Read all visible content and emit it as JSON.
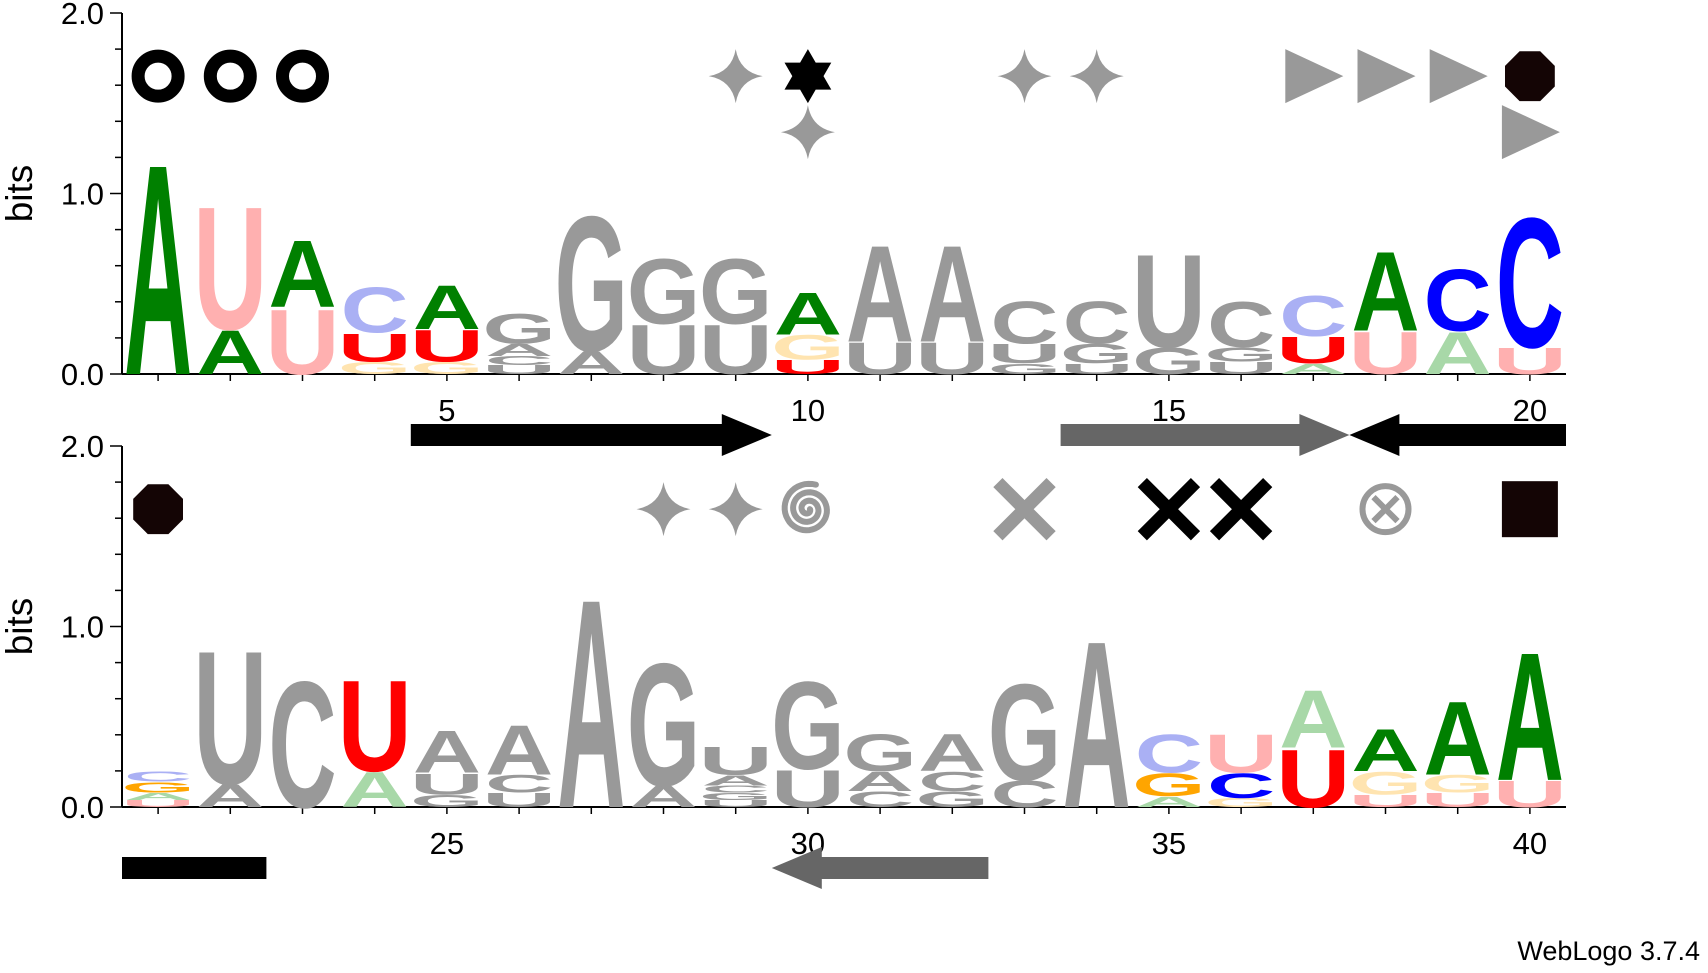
{
  "credit": "WebLogo 3.7.4",
  "colors": {
    "A_strong": "#008000",
    "A_light": "#a8d8a8",
    "U_strong": "#ff0000",
    "U_light": "#ffb0b0",
    "C_strong": "#0000ff",
    "C_light": "#aab0f4",
    "G_strong": "#ffa500",
    "G_light": "#ffe4b0",
    "gray": "#999999",
    "black": "#000000",
    "dark": "#140505"
  },
  "chart_data": {
    "type": "sequence-logo",
    "ylabel": "bits",
    "ylim": [
      0,
      2.0
    ],
    "yticks": [
      "0.0",
      "1.0",
      "2.0"
    ],
    "rows": [
      {
        "positions": [
          {
            "pos": 1,
            "stack": [
              {
                "l": "A",
                "h": 1.2,
                "c": "A_strong"
              }
            ]
          },
          {
            "pos": 2,
            "stack": [
              {
                "l": "U",
                "h": 0.7,
                "c": "U_light"
              },
              {
                "l": "A",
                "h": 0.25,
                "c": "A_strong"
              }
            ]
          },
          {
            "pos": 3,
            "stack": [
              {
                "l": "A",
                "h": 0.38,
                "c": "A_strong"
              },
              {
                "l": "U",
                "h": 0.37,
                "c": "U_light"
              }
            ]
          },
          {
            "pos": 4,
            "stack": [
              {
                "l": "C",
                "h": 0.26,
                "c": "C_light"
              },
              {
                "l": "U",
                "h": 0.16,
                "c": "U_strong"
              },
              {
                "l": "G",
                "h": 0.07,
                "c": "G_light"
              }
            ]
          },
          {
            "pos": 5,
            "stack": [
              {
                "l": "A",
                "h": 0.25,
                "c": "A_strong"
              },
              {
                "l": "U",
                "h": 0.18,
                "c": "U_strong"
              },
              {
                "l": "G",
                "h": 0.07,
                "c": "G_light"
              }
            ]
          },
          {
            "pos": 6,
            "stack": [
              {
                "l": "G",
                "h": 0.17,
                "c": "gray"
              },
              {
                "l": "A",
                "h": 0.07,
                "c": "gray"
              },
              {
                "l": "C",
                "h": 0.05,
                "c": "gray"
              },
              {
                "l": "U",
                "h": 0.05,
                "c": "gray"
              }
            ]
          },
          {
            "pos": 7,
            "stack": [
              {
                "l": "G",
                "h": 0.77,
                "c": "gray"
              },
              {
                "l": "A",
                "h": 0.13,
                "c": "gray"
              }
            ]
          },
          {
            "pos": 8,
            "stack": [
              {
                "l": "G",
                "h": 0.37,
                "c": "gray"
              },
              {
                "l": "U",
                "h": 0.28,
                "c": "gray"
              }
            ]
          },
          {
            "pos": 9,
            "stack": [
              {
                "l": "G",
                "h": 0.37,
                "c": "gray"
              },
              {
                "l": "U",
                "h": 0.28,
                "c": "gray"
              }
            ]
          },
          {
            "pos": 10,
            "stack": [
              {
                "l": "A",
                "h": 0.24,
                "c": "A_strong"
              },
              {
                "l": "G",
                "h": 0.14,
                "c": "G_light"
              },
              {
                "l": "U",
                "h": 0.08,
                "c": "U_strong"
              }
            ]
          },
          {
            "pos": 11,
            "stack": [
              {
                "l": "A",
                "h": 0.55,
                "c": "gray"
              },
              {
                "l": "U",
                "h": 0.18,
                "c": "gray"
              }
            ]
          },
          {
            "pos": 12,
            "stack": [
              {
                "l": "A",
                "h": 0.55,
                "c": "gray"
              },
              {
                "l": "U",
                "h": 0.18,
                "c": "gray"
              }
            ]
          },
          {
            "pos": 13,
            "stack": [
              {
                "l": "C",
                "h": 0.24,
                "c": "gray"
              },
              {
                "l": "U",
                "h": 0.11,
                "c": "gray"
              },
              {
                "l": "G",
                "h": 0.06,
                "c": "gray"
              }
            ]
          },
          {
            "pos": 14,
            "stack": [
              {
                "l": "C",
                "h": 0.24,
                "c": "gray"
              },
              {
                "l": "G",
                "h": 0.11,
                "c": "gray"
              },
              {
                "l": "U",
                "h": 0.06,
                "c": "gray"
              }
            ]
          },
          {
            "pos": 15,
            "stack": [
              {
                "l": "U",
                "h": 0.53,
                "c": "gray"
              },
              {
                "l": "G",
                "h": 0.15,
                "c": "gray"
              }
            ]
          },
          {
            "pos": 16,
            "stack": [
              {
                "l": "C",
                "h": 0.26,
                "c": "gray"
              },
              {
                "l": "G",
                "h": 0.08,
                "c": "gray"
              },
              {
                "l": "U",
                "h": 0.07,
                "c": "gray"
              }
            ]
          },
          {
            "pos": 17,
            "stack": [
              {
                "l": "C",
                "h": 0.23,
                "c": "C_light"
              },
              {
                "l": "U",
                "h": 0.15,
                "c": "U_strong"
              },
              {
                "l": "A",
                "h": 0.06,
                "c": "A_light"
              }
            ]
          },
          {
            "pos": 18,
            "stack": [
              {
                "l": "A",
                "h": 0.45,
                "c": "A_strong"
              },
              {
                "l": "U",
                "h": 0.24,
                "c": "U_light"
              }
            ]
          },
          {
            "pos": 19,
            "stack": [
              {
                "l": "C",
                "h": 0.35,
                "c": "C_strong"
              },
              {
                "l": "A",
                "h": 0.24,
                "c": "A_light"
              }
            ]
          },
          {
            "pos": 20,
            "stack": [
              {
                "l": "C",
                "h": 0.74,
                "c": "C_strong"
              },
              {
                "l": "U",
                "h": 0.15,
                "c": "U_light"
              }
            ]
          }
        ],
        "xticks": [
          {
            "pos": 5,
            "label": "5"
          },
          {
            "pos": 10,
            "label": "10"
          },
          {
            "pos": 15,
            "label": "15"
          },
          {
            "pos": 20,
            "label": "20"
          }
        ],
        "symbols": [
          {
            "pos": 1,
            "type": "ring",
            "color": "black",
            "level": 1.65
          },
          {
            "pos": 2,
            "type": "ring",
            "color": "black",
            "level": 1.65
          },
          {
            "pos": 3,
            "type": "ring",
            "color": "black",
            "level": 1.65
          },
          {
            "pos": 9,
            "type": "sparkle",
            "color": "gray",
            "level": 1.65
          },
          {
            "pos": 10,
            "type": "hexagram",
            "color": "black",
            "level": 1.65
          },
          {
            "pos": 10,
            "type": "sparkle",
            "color": "gray",
            "level": 1.34
          },
          {
            "pos": 13,
            "type": "sparkle",
            "color": "gray",
            "level": 1.65
          },
          {
            "pos": 14,
            "type": "sparkle",
            "color": "gray",
            "level": 1.65
          },
          {
            "pos": 17,
            "type": "triangle",
            "color": "gray",
            "level": 1.65
          },
          {
            "pos": 18,
            "type": "triangle",
            "color": "gray",
            "level": 1.65
          },
          {
            "pos": 19,
            "type": "triangle",
            "color": "gray",
            "level": 1.65
          },
          {
            "pos": 20,
            "type": "octagon",
            "color": "dark",
            "level": 1.65
          },
          {
            "pos": 20,
            "type": "triangle",
            "color": "gray",
            "level": 1.34
          }
        ],
        "arrows": [
          {
            "from": 4.5,
            "to": 9.5,
            "dir": "right",
            "color": "black"
          },
          {
            "from": 13.5,
            "to": 17.5,
            "dir": "right",
            "color": "#666666"
          },
          {
            "from": 17.5,
            "to": 20.5,
            "dir": "left",
            "color": "black"
          }
        ]
      },
      {
        "positions": [
          {
            "pos": 21,
            "stack": [
              {
                "l": "C",
                "h": 0.06,
                "c": "C_light"
              },
              {
                "l": "G",
                "h": 0.06,
                "c": "G_strong"
              },
              {
                "l": "A",
                "h": 0.04,
                "c": "A_light"
              },
              {
                "l": "U",
                "h": 0.04,
                "c": "U_light"
              }
            ]
          },
          {
            "pos": 22,
            "stack": [
              {
                "l": "U",
                "h": 0.76,
                "c": "gray"
              },
              {
                "l": "A",
                "h": 0.13,
                "c": "gray"
              }
            ]
          },
          {
            "pos": 23,
            "stack": [
              {
                "l": "C",
                "h": 0.72,
                "c": "gray"
              }
            ]
          },
          {
            "pos": 24,
            "stack": [
              {
                "l": "U",
                "h": 0.52,
                "c": "U_strong"
              },
              {
                "l": "A",
                "h": 0.2,
                "c": "A_light"
              }
            ]
          },
          {
            "pos": 25,
            "stack": [
              {
                "l": "A",
                "h": 0.24,
                "c": "gray"
              },
              {
                "l": "U",
                "h": 0.12,
                "c": "gray"
              },
              {
                "l": "G",
                "h": 0.07,
                "c": "gray"
              }
            ]
          },
          {
            "pos": 26,
            "stack": [
              {
                "l": "A",
                "h": 0.28,
                "c": "gray"
              },
              {
                "l": "C",
                "h": 0.1,
                "c": "gray"
              },
              {
                "l": "U",
                "h": 0.08,
                "c": "gray"
              }
            ]
          },
          {
            "pos": 27,
            "stack": [
              {
                "l": "A",
                "h": 1.19,
                "c": "gray"
              }
            ]
          },
          {
            "pos": 28,
            "stack": [
              {
                "l": "G",
                "h": 0.7,
                "c": "gray"
              },
              {
                "l": "A",
                "h": 0.12,
                "c": "gray"
              }
            ]
          },
          {
            "pos": 29,
            "stack": [
              {
                "l": "U",
                "h": 0.16,
                "c": "gray"
              },
              {
                "l": "A",
                "h": 0.06,
                "c": "gray"
              },
              {
                "l": "C",
                "h": 0.04,
                "c": "gray"
              },
              {
                "l": "G",
                "h": 0.04,
                "c": "gray"
              },
              {
                "l": "U",
                "h": 0.04,
                "c": "gray"
              }
            ]
          },
          {
            "pos": 30,
            "stack": [
              {
                "l": "G",
                "h": 0.5,
                "c": "gray"
              },
              {
                "l": "U",
                "h": 0.21,
                "c": "gray"
              }
            ]
          },
          {
            "pos": 31,
            "stack": [
              {
                "l": "G",
                "h": 0.21,
                "c": "gray"
              },
              {
                "l": "A",
                "h": 0.11,
                "c": "gray"
              },
              {
                "l": "C",
                "h": 0.09,
                "c": "gray"
              }
            ]
          },
          {
            "pos": 32,
            "stack": [
              {
                "l": "A",
                "h": 0.21,
                "c": "gray"
              },
              {
                "l": "C",
                "h": 0.11,
                "c": "gray"
              },
              {
                "l": "G",
                "h": 0.09,
                "c": "gray"
              }
            ]
          },
          {
            "pos": 33,
            "stack": [
              {
                "l": "G",
                "h": 0.55,
                "c": "gray"
              },
              {
                "l": "C",
                "h": 0.15,
                "c": "gray"
              }
            ]
          },
          {
            "pos": 34,
            "stack": [
              {
                "l": "A",
                "h": 0.95,
                "c": "gray"
              }
            ]
          },
          {
            "pos": 35,
            "stack": [
              {
                "l": "C",
                "h": 0.22,
                "c": "C_light"
              },
              {
                "l": "G",
                "h": 0.13,
                "c": "G_strong"
              },
              {
                "l": "A",
                "h": 0.06,
                "c": "A_light"
              }
            ]
          },
          {
            "pos": 36,
            "stack": [
              {
                "l": "U",
                "h": 0.22,
                "c": "U_light"
              },
              {
                "l": "C",
                "h": 0.14,
                "c": "C_strong"
              },
              {
                "l": "G",
                "h": 0.05,
                "c": "G_light"
              }
            ]
          },
          {
            "pos": 37,
            "stack": [
              {
                "l": "A",
                "h": 0.33,
                "c": "A_light"
              },
              {
                "l": "U",
                "h": 0.33,
                "c": "U_strong"
              }
            ]
          },
          {
            "pos": 38,
            "stack": [
              {
                "l": "A",
                "h": 0.24,
                "c": "A_strong"
              },
              {
                "l": "G",
                "h": 0.13,
                "c": "G_light"
              },
              {
                "l": "U",
                "h": 0.07,
                "c": "U_light"
              }
            ]
          },
          {
            "pos": 39,
            "stack": [
              {
                "l": "A",
                "h": 0.42,
                "c": "A_strong"
              },
              {
                "l": "G",
                "h": 0.1,
                "c": "G_light"
              },
              {
                "l": "U",
                "h": 0.08,
                "c": "U_light"
              }
            ]
          },
          {
            "pos": 40,
            "stack": [
              {
                "l": "A",
                "h": 0.73,
                "c": "A_strong"
              },
              {
                "l": "U",
                "h": 0.15,
                "c": "U_light"
              }
            ]
          }
        ],
        "xticks": [
          {
            "pos": 25,
            "label": "25"
          },
          {
            "pos": 30,
            "label": "30"
          },
          {
            "pos": 35,
            "label": "35"
          },
          {
            "pos": 40,
            "label": "40"
          }
        ],
        "symbols": [
          {
            "pos": 21,
            "type": "octagon",
            "color": "dark",
            "level": 1.65
          },
          {
            "pos": 28,
            "type": "sparkle",
            "color": "gray",
            "level": 1.65
          },
          {
            "pos": 29,
            "type": "sparkle",
            "color": "gray",
            "level": 1.65
          },
          {
            "pos": 30,
            "type": "spiral",
            "color": "gray",
            "level": 1.65
          },
          {
            "pos": 33,
            "type": "cross",
            "color": "gray",
            "level": 1.65
          },
          {
            "pos": 35,
            "type": "cross",
            "color": "black",
            "level": 1.65
          },
          {
            "pos": 36,
            "type": "cross",
            "color": "black",
            "level": 1.65
          },
          {
            "pos": 38,
            "type": "otimes",
            "color": "gray",
            "level": 1.65
          },
          {
            "pos": 40,
            "type": "square",
            "color": "dark",
            "level": 1.65
          }
        ],
        "arrows": [
          {
            "from": 29.5,
            "to": 32.5,
            "dir": "left",
            "color": "#666666"
          }
        ],
        "bars": [
          {
            "from": 20.5,
            "to": 22.5,
            "color": "black"
          }
        ]
      }
    ]
  }
}
